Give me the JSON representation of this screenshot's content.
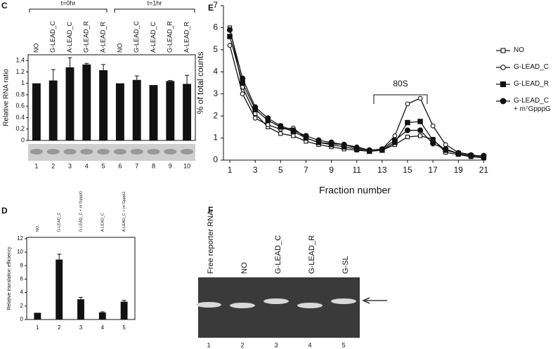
{
  "panels": {
    "labels": [
      "C",
      "D",
      "E",
      "F"
    ]
  },
  "chart_data": [
    {
      "type": "bar",
      "ylabel": "Relative RNA ratio",
      "groups": [
        "t=0hr",
        "t=1hr"
      ],
      "categories": [
        "NO",
        "G-LEAD_C",
        "A-LEAD_C",
        "G-LEAD_R",
        "A-LEAD_R",
        "NO",
        "G-LEAD_C",
        "A-LEAD_C",
        "G-LEAD_R",
        "A-LEAD_R"
      ],
      "values": [
        1.0,
        1.05,
        1.28,
        1.33,
        1.23,
        1.0,
        1.06,
        0.97,
        1.04,
        0.99
      ],
      "errors": [
        0,
        0.19,
        0.17,
        0.02,
        0.1,
        0,
        0.07,
        0,
        0.01,
        0.15
      ],
      "lanes": [
        "1",
        "2",
        "3",
        "4",
        "5",
        "6",
        "7",
        "8",
        "9",
        "10"
      ],
      "color": "#111111",
      "ylim": [
        0,
        1.5
      ],
      "yticks": [
        0,
        0.2,
        0.4,
        0.6,
        0.8,
        1,
        1.2,
        1.4
      ]
    },
    {
      "type": "bar",
      "ylabel": "Relative translation efficiency",
      "categories": [
        "NO",
        "G-LEAD_C",
        "G-LEAD_C + m⁷GpppG",
        "A-LEAD_C",
        "A-LEAD_C + m⁷GpppG"
      ],
      "values": [
        1.0,
        8.9,
        3.0,
        1.05,
        2.65
      ],
      "errors": [
        0,
        0.8,
        0.3,
        0.1,
        0.2
      ],
      "lanes": [
        "1",
        "2",
        "3",
        "4",
        "5"
      ],
      "color": "#111111",
      "ylim": [
        0,
        12.2
      ],
      "yticks": [
        0,
        2,
        4,
        6,
        8,
        10,
        12
      ]
    },
    {
      "type": "line",
      "xlabel": "Fraction number",
      "ylabel": "% of total counts",
      "annotation": "80S",
      "x": [
        1,
        2,
        3,
        4,
        5,
        6,
        7,
        8,
        9,
        10,
        11,
        12,
        13,
        14,
        15,
        16,
        17,
        18,
        19,
        20,
        21
      ],
      "series": [
        {
          "name": "NO",
          "color": "#111111",
          "marker": "square",
          "filled": false,
          "values": [
            6.0,
            3.3,
            2.1,
            1.5,
            1.2,
            1.1,
            0.85,
            0.7,
            0.6,
            0.5,
            0.45,
            0.4,
            0.45,
            0.7,
            1.05,
            1.1,
            0.95,
            0.35,
            0.25,
            0.15,
            0.1
          ]
        },
        {
          "name": "G-LEAD_C",
          "color": "#111111",
          "marker": "circle",
          "filled": false,
          "values": [
            5.2,
            3.0,
            1.9,
            1.6,
            1.4,
            1.45,
            1.0,
            0.8,
            0.75,
            0.7,
            0.6,
            0.45,
            0.5,
            1.1,
            2.55,
            2.8,
            1.55,
            0.7,
            0.35,
            0.25,
            0.15
          ]
        },
        {
          "name": "G-LEAD_R",
          "color": "#111111",
          "marker": "square",
          "filled": true,
          "values": [
            5.6,
            3.5,
            2.3,
            1.8,
            1.5,
            1.3,
            1.0,
            0.8,
            0.7,
            0.6,
            0.5,
            0.4,
            0.45,
            0.8,
            1.7,
            1.75,
            0.9,
            0.45,
            0.3,
            0.2,
            0.15
          ]
        },
        {
          "name": "G-LEAD_C + m⁷GpppG",
          "color": "#111111",
          "marker": "circle",
          "filled": true,
          "values": [
            5.9,
            3.7,
            2.4,
            1.9,
            1.55,
            1.35,
            1.1,
            0.9,
            0.8,
            0.7,
            0.55,
            0.45,
            0.5,
            0.9,
            1.35,
            1.35,
            0.75,
            0.5,
            0.3,
            0.2,
            0.2
          ]
        }
      ],
      "xlim": [
        0.5,
        21.2
      ],
      "xticks": [
        1,
        3,
        5,
        7,
        9,
        11,
        13,
        15,
        17,
        19,
        21
      ],
      "ylim": [
        0,
        7
      ],
      "yticks": [
        0,
        1,
        2,
        3,
        4,
        5,
        6,
        7
      ]
    }
  ],
  "gel_f": {
    "labels": [
      "Free reporter RNA",
      "NO",
      "G-LEAD_C",
      "G-LEAD_R",
      "G-SL"
    ],
    "lanes": [
      "1",
      "2",
      "3",
      "4",
      "5"
    ]
  }
}
